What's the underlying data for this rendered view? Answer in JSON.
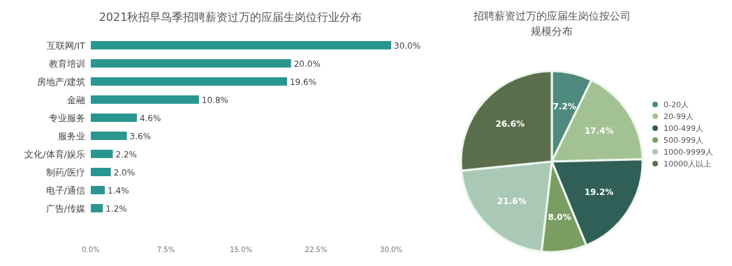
{
  "chart_data": [
    {
      "type": "bar",
      "title": "2021秋招早鸟季招聘薪资过万的应届生岗位行业分布",
      "orientation": "horizontal",
      "categories": [
        "互联网/IT",
        "教育培训",
        "房地产/建筑",
        "金融",
        "专业服务",
        "服务业",
        "文化/体育/娱乐",
        "制药/医疗",
        "电子/通信",
        "广告/传媒"
      ],
      "values": [
        30.0,
        20.0,
        19.6,
        10.8,
        4.6,
        3.6,
        2.2,
        2.0,
        1.4,
        1.2
      ],
      "value_labels": [
        "30.0%",
        "20.0%",
        "19.6%",
        "10.8%",
        "4.6%",
        "3.6%",
        "2.2%",
        "2.0%",
        "1.4%",
        "1.2%"
      ],
      "color": "#2a9690",
      "xlim": [
        0,
        30
      ],
      "xticks": [
        {
          "value": 0,
          "label": "0.0%"
        },
        {
          "value": 7.5,
          "label": "7.5%"
        },
        {
          "value": 15,
          "label": "15.0%"
        },
        {
          "value": 22.5,
          "label": "22.5%"
        },
        {
          "value": 30,
          "label": "30.0%"
        }
      ],
      "grid": false
    },
    {
      "type": "pie",
      "title": "招聘薪资过万的应届生岗位按公司规模分布",
      "categories": [
        "0-20人",
        "20-99人",
        "100-499人",
        "500-999人",
        "1000-9999人",
        "10000人以上"
      ],
      "values": [
        7.2,
        17.4,
        19.2,
        8.0,
        21.6,
        26.6
      ],
      "value_labels": [
        "7.2%",
        "17.4%",
        "19.2%",
        "8.0%",
        "21.6%",
        "26.6%"
      ],
      "colors": [
        "#4e8a7e",
        "#a3c293",
        "#2f5f57",
        "#7a9e62",
        "#a9c9b6",
        "#5b6e4c"
      ],
      "legend": "right"
    }
  ]
}
